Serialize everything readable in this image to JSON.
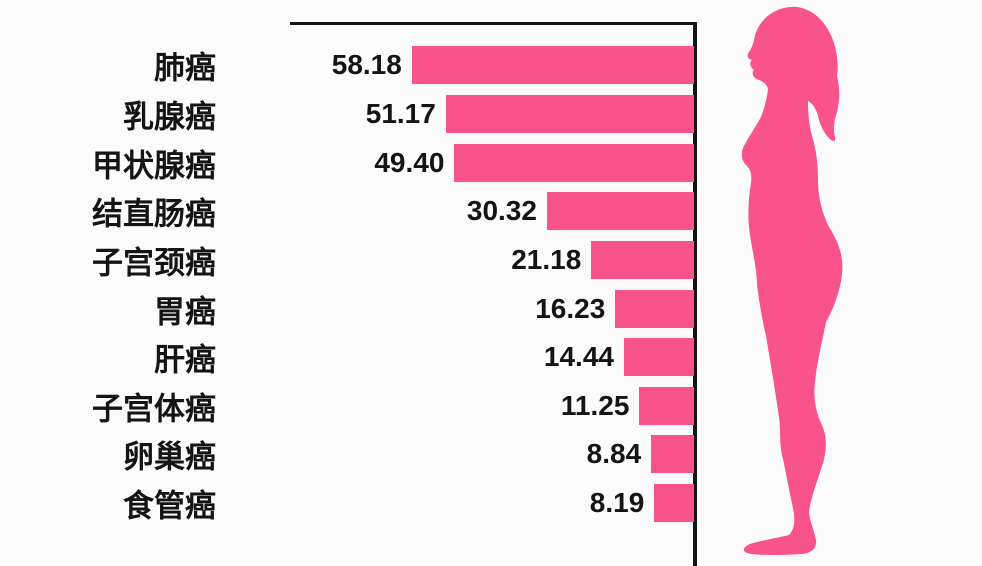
{
  "chart_data": {
    "type": "bar",
    "orientation": "horizontal, bars anchored to right axis extending left",
    "categories": [
      "肺癌",
      "乳腺癌",
      "甲状腺癌",
      "结直肠癌",
      "子宫颈癌",
      "胃癌",
      "肝癌",
      "子宫体癌",
      "卵巢癌",
      "食管癌"
    ],
    "values": [
      58.18,
      51.17,
      49.4,
      30.32,
      21.18,
      16.23,
      14.44,
      11.25,
      8.84,
      8.19
    ],
    "value_labels": [
      "58.18",
      "51.17",
      "49.40",
      "30.32",
      "21.18",
      "16.23",
      "14.44",
      "11.25",
      "8.84",
      "8.19"
    ],
    "title": "",
    "xlabel": "",
    "ylabel": "",
    "xlim": [
      0,
      60
    ],
    "grid": false,
    "legend": false,
    "bar_color": "#f9538c",
    "axis_color": "#141414",
    "label_color": "#141414"
  },
  "figure": {
    "name": "woman-profile-silhouette",
    "description": "standing woman in side profile facing left, right of axis",
    "color": "#f9538c"
  },
  "colors": {
    "background": "#fbfbfc"
  }
}
